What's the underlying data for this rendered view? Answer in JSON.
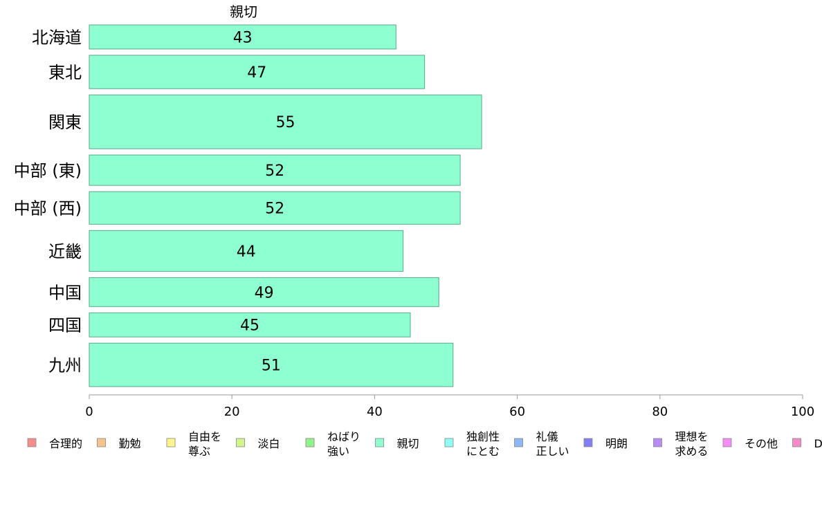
{
  "chart_data": {
    "type": "bar",
    "orientation": "horizontal",
    "title": "親切",
    "categories": [
      "北海道",
      "東北",
      "関東",
      "中部 (東)",
      "中部 (西)",
      "近畿",
      "中国",
      "四国",
      "九州"
    ],
    "values": [
      43,
      47,
      55,
      52,
      52,
      44,
      49,
      45,
      51
    ],
    "weights": [
      0.65,
      0.9,
      1.45,
      0.82,
      0.88,
      1.1,
      0.78,
      0.65,
      1.17
    ],
    "xlim": [
      0,
      100
    ],
    "xticks": [
      "0",
      "20",
      "40",
      "60",
      "80",
      "100"
    ],
    "bar_color": "#8dffd0",
    "bar_stroke": "#5aa88a",
    "legend_position": "bottom",
    "legend": [
      {
        "label": [
          "合理的"
        ],
        "color": "#f48c8c"
      },
      {
        "label": [
          "勤勉"
        ],
        "color": "#f5c48a"
      },
      {
        "label": [
          "自由を",
          "尊ぶ"
        ],
        "color": "#fff58a"
      },
      {
        "label": [
          "淡白"
        ],
        "color": "#d2f58a"
      },
      {
        "label": [
          "ねばり",
          "強い"
        ],
        "color": "#8df58a"
      },
      {
        "label": [
          "親切"
        ],
        "color": "#8dffd0"
      },
      {
        "label": [
          "独創性",
          "にとむ"
        ],
        "color": "#8dfff5"
      },
      {
        "label": [
          "礼儀",
          "正しい"
        ],
        "color": "#8cb8f5"
      },
      {
        "label": [
          "明朗"
        ],
        "color": "#8080f0"
      },
      {
        "label": [
          "理想を",
          "求める"
        ],
        "color": "#b88cf5"
      },
      {
        "label": [
          "その他"
        ],
        "color": "#f58cf5"
      },
      {
        "label": [
          "D"
        ],
        "color": "#f58cc8"
      }
    ]
  }
}
